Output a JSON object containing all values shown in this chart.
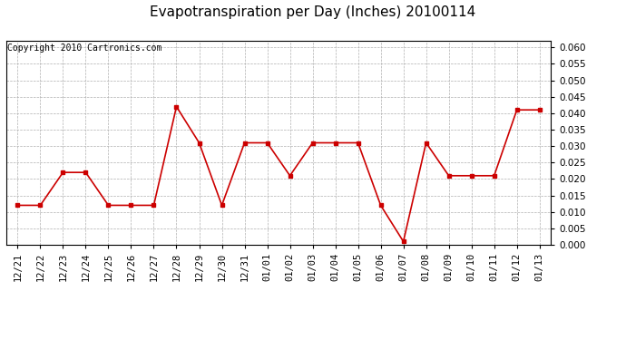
{
  "title": "Evapotranspiration per Day (Inches) 20100114",
  "copyright_text": "Copyright 2010 Cartronics.com",
  "x_labels": [
    "12/21",
    "12/22",
    "12/23",
    "12/24",
    "12/25",
    "12/26",
    "12/27",
    "12/28",
    "12/29",
    "12/30",
    "12/31",
    "01/01",
    "01/02",
    "01/03",
    "01/04",
    "01/05",
    "01/06",
    "01/07",
    "01/08",
    "01/09",
    "01/10",
    "01/11",
    "01/12",
    "01/13"
  ],
  "y_values": [
    0.012,
    0.012,
    0.022,
    0.022,
    0.012,
    0.012,
    0.012,
    0.042,
    0.031,
    0.012,
    0.031,
    0.031,
    0.021,
    0.031,
    0.031,
    0.031,
    0.012,
    0.001,
    0.031,
    0.021,
    0.021,
    0.021,
    0.041,
    0.041
  ],
  "line_color": "#cc0000",
  "marker": "s",
  "marker_size": 3,
  "ylim": [
    0.0,
    0.062
  ],
  "ytick_min": 0.0,
  "ytick_max": 0.06,
  "ytick_step": 0.005,
  "bg_color": "#ffffff",
  "grid_color": "#b0b0b0",
  "title_fontsize": 11,
  "copyright_fontsize": 7,
  "tick_fontsize": 7.5,
  "linewidth": 1.2
}
